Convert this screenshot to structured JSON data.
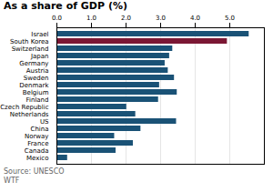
{
  "chart_data": {
    "type": "bar",
    "orientation": "horizontal",
    "title": "As a share of GDP (%)",
    "categories": [
      "Israel",
      "South Korea",
      "Switzerland",
      "Japan",
      "Germany",
      "Austria",
      "Sweden",
      "Denmark",
      "Belgium",
      "Finland",
      "Czech Republic",
      "Netherlands",
      "US",
      "China",
      "Norway",
      "France",
      "Canada",
      "Mexico"
    ],
    "values": [
      5.56,
      4.93,
      3.35,
      3.26,
      3.13,
      3.22,
      3.4,
      2.97,
      3.48,
      2.94,
      2.02,
      2.28,
      3.46,
      2.43,
      1.67,
      2.21,
      1.71,
      0.31
    ],
    "colors": [
      "#1a5276",
      "#7b1734",
      "#1a5276",
      "#1a5276",
      "#1a5276",
      "#1a5276",
      "#1a5276",
      "#1a5276",
      "#1a5276",
      "#1a5276",
      "#1a5276",
      "#1a5276",
      "#1a5276",
      "#1a5276",
      "#1a5276",
      "#1a5276",
      "#1a5276",
      "#1a5276"
    ],
    "xlim": [
      0,
      6.0
    ],
    "xticks": [
      0,
      1,
      2,
      3,
      4,
      5
    ],
    "grid": true,
    "annotations": [
      "Source: UNESCO",
      "WTF"
    ]
  }
}
